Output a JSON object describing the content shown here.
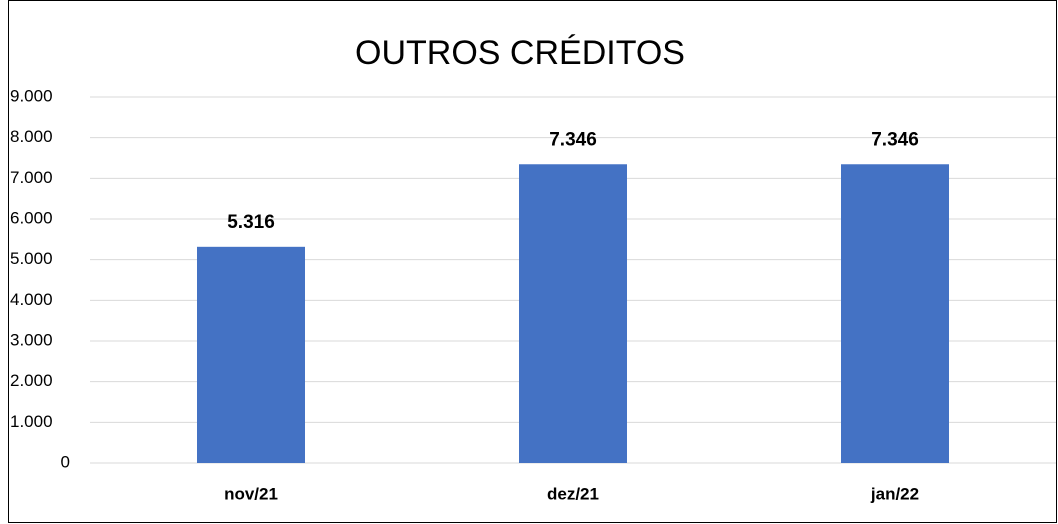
{
  "chart_data": {
    "type": "bar",
    "title": "OUTROS  CRÉDITOS",
    "categories": [
      "nov/21",
      "dez/21",
      "jan/22"
    ],
    "values": [
      5316,
      7346,
      7346
    ],
    "value_labels": [
      "5.316",
      "7.346",
      "7.346"
    ],
    "color": "#4472c4",
    "ylim": [
      0,
      9000
    ],
    "yticks": [
      0,
      {
        "value": 1000,
        "label": "1.000"
      },
      {
        "value": 2000,
        "label": "2.000"
      },
      {
        "value": 3000,
        "label": "3.000"
      },
      {
        "value": 4000,
        "label": "4.000"
      },
      {
        "value": 5000,
        "label": "5.000"
      },
      {
        "value": 6000,
        "label": "6.000"
      },
      {
        "value": 7000,
        "label": "7.000"
      },
      {
        "value": 8000,
        "label": "8.000"
      },
      {
        "value": 9000,
        "label": "9.000"
      }
    ],
    "grid": true
  }
}
